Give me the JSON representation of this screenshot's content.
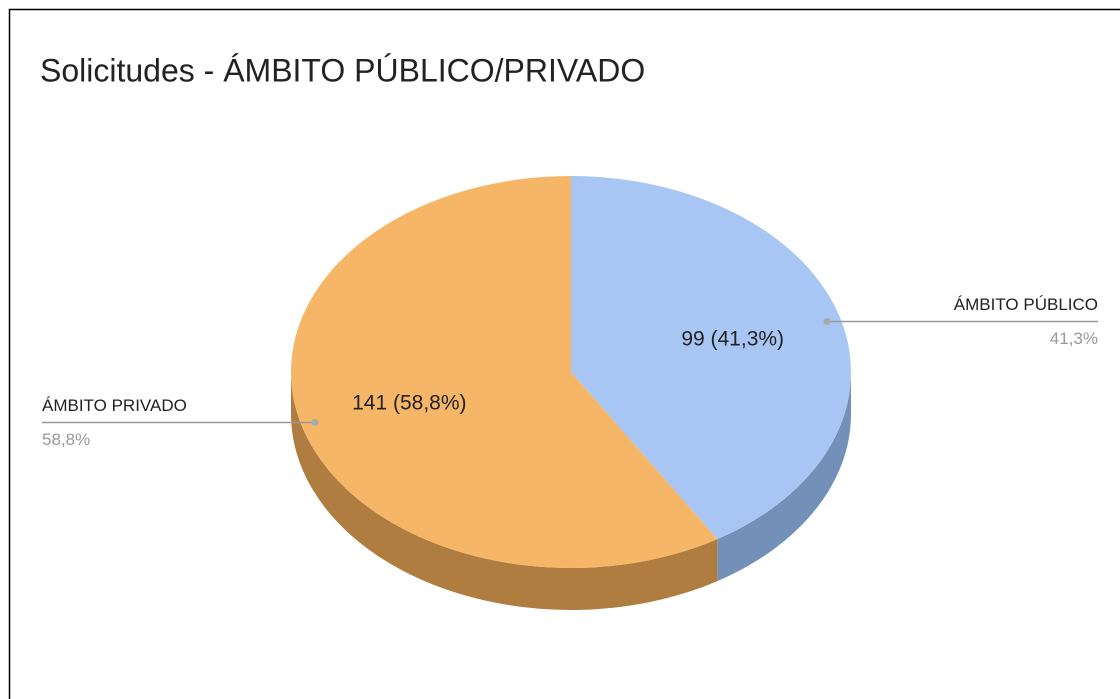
{
  "chart_data": {
    "type": "pie",
    "title": "Solicitudes  -  ÁMBITO PÚBLICO/PRIVADO",
    "categories": [
      "ÁMBITO PÚBLICO",
      "ÁMBITO PRIVADO"
    ],
    "values": [
      99,
      141
    ],
    "value_labels": [
      "99 (41,3%)",
      "141 (58,8%)"
    ],
    "percent_labels": [
      "41,3%",
      "58,8%"
    ],
    "colors": [
      "#a8c6f4",
      "#f6b667"
    ],
    "side_colors": [
      "#7390b8",
      "#b07d40"
    ],
    "three_d": true
  }
}
